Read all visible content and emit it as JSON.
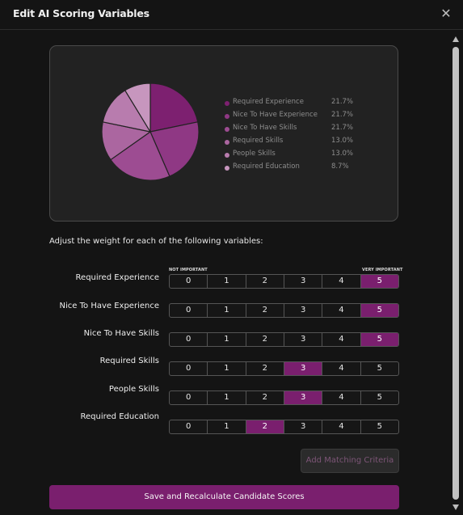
{
  "header": {
    "title": "Edit AI Scoring Variables",
    "close_icon": "close-icon"
  },
  "chart_data": {
    "type": "pie",
    "slices": [
      {
        "label": "Required Experience",
        "value": 21.7,
        "pct": "21.7%",
        "color": "#7d2070"
      },
      {
        "label": "Nice To Have Experience",
        "value": 21.7,
        "pct": "21.7%",
        "color": "#8f3884"
      },
      {
        "label": "Nice To Have Skills",
        "value": 21.7,
        "pct": "21.7%",
        "color": "#9d4c92"
      },
      {
        "label": "Required Skills",
        "value": 13.0,
        "pct": "13.0%",
        "color": "#ab66a0"
      },
      {
        "label": "People Skills",
        "value": 13.0,
        "pct": "13.0%",
        "color": "#b87cae"
      },
      {
        "label": "Required Education",
        "value": 8.7,
        "pct": "8.7%",
        "color": "#c796be"
      }
    ]
  },
  "instructions": "Adjust the weight for each of the following variables:",
  "scale_labels": {
    "min": "NOT IMPORTANT",
    "max": "VERY IMPORTANT"
  },
  "scale_options": [
    "0",
    "1",
    "2",
    "3",
    "4",
    "5"
  ],
  "variables": [
    {
      "label": "Required Experience",
      "selected": 5
    },
    {
      "label": "Nice To Have Experience",
      "selected": 5
    },
    {
      "label": "Nice To Have Skills",
      "selected": 5
    },
    {
      "label": "Required Skills",
      "selected": 3
    },
    {
      "label": "People Skills",
      "selected": 3
    },
    {
      "label": "Required Education",
      "selected": 2
    }
  ],
  "buttons": {
    "add_criteria": "Add Matching Criteria",
    "save": "Save and Recalculate Candidate Scores"
  },
  "colors": {
    "accent": "#7a1f6e",
    "background": "#141414",
    "panel": "#222222"
  }
}
